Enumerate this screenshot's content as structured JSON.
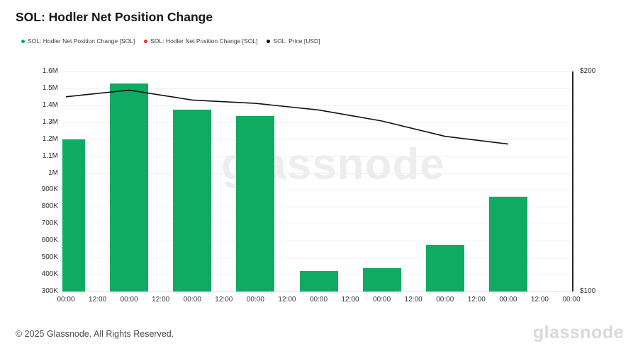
{
  "header": {
    "title": "SOL: Hodler Net Position Change"
  },
  "legend": {
    "items": [
      {
        "label": "SOL: Hodler Net Position Change [SOL]",
        "color": "#0fab62",
        "icon": "green-dot-icon"
      },
      {
        "label": "SOL: Hodler Net Position Change [SOL]",
        "color": "#e0382e",
        "icon": "red-dot-icon"
      },
      {
        "label": "SOL: Price [USD]",
        "color": "#111111",
        "icon": "black-dot-icon"
      }
    ]
  },
  "chart_data": {
    "type": "bar",
    "title": "SOL: Hodler Net Position Change",
    "x_labels": [
      "00:00",
      "12:00",
      "00:00",
      "12:00",
      "00:00",
      "12:00",
      "00:00",
      "12:00",
      "00:00",
      "12:00",
      "00:00",
      "12:00",
      "00:00",
      "12:00",
      "00:00",
      "12:00",
      "00:00"
    ],
    "series": [
      {
        "name": "SOL: Hodler Net Position Change [SOL]",
        "type": "bar",
        "axis": "left",
        "color": "#0fab62",
        "values": [
          1200000,
          1530000,
          1375000,
          1335000,
          420000,
          440000,
          575000,
          860000
        ]
      },
      {
        "name": "SOL: Price [USD]",
        "type": "line",
        "axis": "right",
        "color": "#111111",
        "values": [
          188.5,
          191.5,
          187,
          185.5,
          182.5,
          177.5,
          170.5,
          167
        ]
      }
    ],
    "left_axis": {
      "ticks": [
        "1.6M",
        "1.5M",
        "1.4M",
        "1.3M",
        "1.2M",
        "1.1M",
        "1M",
        "900K",
        "800K",
        "700K",
        "600K",
        "500K",
        "400K",
        "300K"
      ],
      "min": 300000,
      "max": 1600000
    },
    "right_axis": {
      "ticks": [
        "$200",
        "$100"
      ],
      "min": 100,
      "max": 200
    },
    "grid": true,
    "legend_position": "top-left"
  },
  "watermark": {
    "text": "glassnode"
  },
  "footer": {
    "copyright": "© 2025 Glassnode. All Rights Reserved.",
    "logo": "glassnode"
  },
  "colors": {
    "bar_green": "#0fab62",
    "legend_red": "#e0382e",
    "price_line": "#111111",
    "grid": "#f0f0f0",
    "right_axis_line": "#2a2a2a",
    "axis_label": "#333333",
    "watermark": "#ededed",
    "logo": "#d9d9d9"
  }
}
